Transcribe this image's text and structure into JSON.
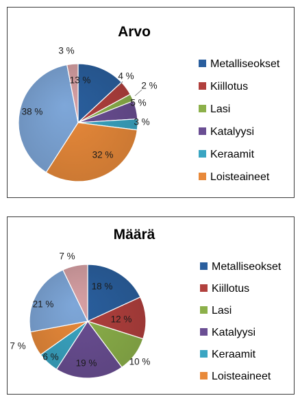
{
  "chart_data": [
    {
      "type": "pie",
      "title": "Arvo",
      "categories": [
        "Metalliseokset",
        "Kiillotus",
        "Lasi",
        "Katalyysi",
        "Keraamit",
        "Loisteaineet",
        "",
        ""
      ],
      "values": [
        13,
        4,
        2,
        5,
        3,
        32,
        38,
        3
      ],
      "value_labels": [
        "13 %",
        "4 %",
        "2 %",
        "5 %",
        "3 %",
        "32 %",
        "38 %",
        "3 %"
      ],
      "legend": [
        "Metalliseokset",
        "Kiillotus",
        "Lasi",
        "Katalyysi",
        "Keraamit",
        "Loisteaineet"
      ],
      "legend_position": "right",
      "colors": [
        "#2a5f9e",
        "#b1403d",
        "#8cb04a",
        "#6a4e93",
        "#3aa5c2",
        "#e8893a",
        "#7ea7d9",
        "#d7a0a4"
      ]
    },
    {
      "type": "pie",
      "title": "Määrä",
      "categories": [
        "Metalliseokset",
        "Kiillotus",
        "Lasi",
        "Katalyysi",
        "Keraamit",
        "Loisteaineet",
        "",
        ""
      ],
      "values": [
        18,
        12,
        10,
        19,
        6,
        7,
        21,
        7
      ],
      "value_labels": [
        "18 %",
        "12 %",
        "10 %",
        "19 %",
        "6 %",
        "7 %",
        "21 %",
        "7 %"
      ],
      "legend": [
        "Metalliseokset",
        "Kiillotus",
        "Lasi",
        "Katalyysi",
        "Keraamit",
        "Loisteaineet"
      ],
      "legend_position": "right",
      "colors": [
        "#2a5f9e",
        "#b1403d",
        "#8cb04a",
        "#6a4e93",
        "#3aa5c2",
        "#e8893a",
        "#7ea7d9",
        "#d7a0a4"
      ]
    }
  ]
}
